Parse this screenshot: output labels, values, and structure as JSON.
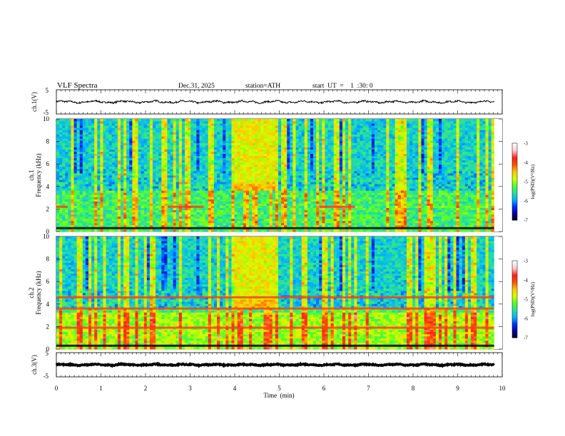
{
  "chart_data": {
    "type": "heatmap",
    "header": {
      "title": "VLF  Spectra",
      "date": "Dec.31, 2025",
      "station": "station=ATH",
      "start": "start  UT  =    1  :30: 0"
    },
    "x": {
      "label": "Time  (min)",
      "range": [
        0,
        10
      ],
      "ticks": [
        "0",
        "1",
        "2",
        "3",
        "4",
        "5",
        "6",
        "7",
        "8",
        "9",
        "10"
      ],
      "data_end": 9.82
    },
    "panels": [
      {
        "id": "ch1-waveform",
        "kind": "line",
        "ylabel": "ch.1(V)",
        "ylim": [
          -5,
          5
        ],
        "yticks": [
          "5",
          "-5"
        ],
        "baseline": 0,
        "amplitude": 0.6
      },
      {
        "id": "ch1-spectrogram",
        "kind": "heatmap",
        "ylabel_top": "ch.1",
        "ylabel": "Frequency  (kHz)",
        "ylim": [
          0,
          10
        ],
        "yticks": [
          "0",
          "2",
          "4",
          "6",
          "8",
          "10"
        ],
        "colorbar_label": "log(PSD)(V²/Hz)",
        "colorbar_ticks": [
          "-3",
          "-4",
          "-5",
          "-6",
          "-7"
        ],
        "colorbar_range": [
          -7,
          -3
        ],
        "burst": {
          "t": [
            3.95,
            4.85
          ],
          "f": [
            3.5,
            10
          ]
        },
        "strong_bands": [
          {
            "f": 2.2,
            "t": [
              0,
              0.25
            ]
          },
          {
            "f": 2.2,
            "t": [
              2.5,
              3.3
            ]
          },
          {
            "f": 2.2,
            "t": [
              5.9,
              6.7
            ]
          },
          {
            "f": 0.3,
            "t": [
              0,
              9.82
            ]
          }
        ]
      },
      {
        "id": "ch2-spectrogram",
        "kind": "heatmap",
        "ylabel_top": "ch.2",
        "ylabel": "Frequency  (kHz)",
        "ylim": [
          0,
          10
        ],
        "yticks": [
          "0",
          "2",
          "4",
          "6",
          "8",
          "10"
        ],
        "colorbar_label": "log(PSD)(V²/Hz)",
        "colorbar_ticks": [
          "-3",
          "-4",
          "-5",
          "-6",
          "-7"
        ],
        "colorbar_range": [
          -7,
          -3
        ],
        "burst": {
          "t": [
            3.95,
            4.85
          ],
          "f": [
            3.5,
            10
          ]
        },
        "strong_bands": [
          {
            "f": 1.9,
            "t": [
              0,
              9.82
            ]
          },
          {
            "f": 3.6,
            "t": [
              0,
              9.82
            ]
          },
          {
            "f": 4.6,
            "t": [
              0,
              9.82
            ]
          },
          {
            "f": 0.3,
            "t": [
              0,
              9.82
            ]
          }
        ]
      },
      {
        "id": "ch3-waveform",
        "kind": "line",
        "ylabel": "ch.3(V)",
        "ylim": [
          -5,
          5
        ],
        "yticks": [
          "5",
          "-5"
        ],
        "baseline": 0,
        "amplitude": 0.35
      }
    ],
    "colormap": [
      "#000000",
      "#0000a0",
      "#0030ff",
      "#00b4ff",
      "#28e0a0",
      "#50ff28",
      "#d2ff00",
      "#ffc800",
      "#ff5000",
      "#ff1e1e",
      "#ffc8c8",
      "#ffffff"
    ]
  }
}
